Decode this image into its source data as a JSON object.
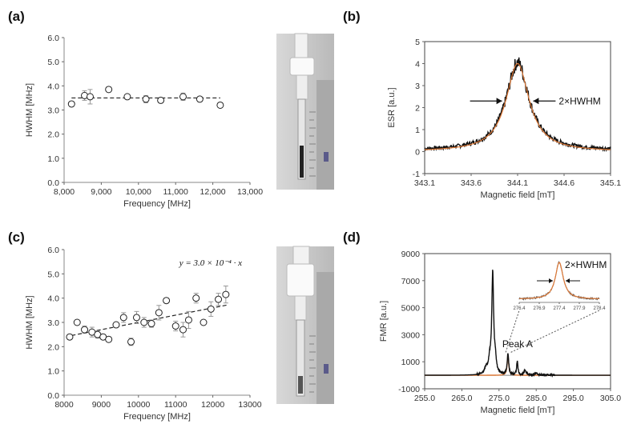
{
  "chart_data": [
    {
      "panel": "(a)",
      "type": "scatter",
      "xlabel": "Frequency [MHz]",
      "ylabel": "HWHM [MHz]",
      "xlim": [
        8000,
        13000
      ],
      "ylim": [
        0.0,
        6.0
      ],
      "xticks": [
        "8,000",
        "9,000",
        "10,000",
        "11,000",
        "12,000",
        "13,000"
      ],
      "yticks": [
        "0.0",
        "1.0",
        "2.0",
        "3.0",
        "4.0",
        "5.0",
        "6.0"
      ],
      "x": [
        8200,
        8550,
        8700,
        9200,
        9700,
        10200,
        10600,
        11200,
        11650,
        12200
      ],
      "y": [
        3.25,
        3.6,
        3.55,
        3.85,
        3.55,
        3.45,
        3.4,
        3.55,
        3.45,
        3.2
      ],
      "err": [
        0.1,
        0.2,
        0.3,
        0.1,
        0.08,
        0.15,
        0.1,
        0.15,
        0.1,
        0.1
      ],
      "fit_y": 3.5
    },
    {
      "panel": "(b)",
      "type": "line",
      "xlabel": "Magnetic field [mT]",
      "ylabel": "ESR [a.u.]",
      "xlim": [
        343.1,
        345.1
      ],
      "ylim": [
        -1,
        5
      ],
      "xticks": [
        "343.1",
        "343.6",
        "344.1",
        "344.6",
        "345.1"
      ],
      "yticks": [
        "-1",
        "0",
        "1",
        "2",
        "3",
        "4",
        "5"
      ],
      "center": 344.1,
      "hwhm": 0.15,
      "amplitude": 4.0,
      "annotation": "2×HWHM"
    },
    {
      "panel": "(c)",
      "type": "scatter",
      "xlabel": "Frequency [MHz]",
      "ylabel": "HWHM [MHz]",
      "xlim": [
        8000,
        13000
      ],
      "ylim": [
        0.0,
        6.0
      ],
      "xticks": [
        "8000",
        "9000",
        "10000",
        "11000",
        "12000",
        "13000"
      ],
      "yticks": [
        "0.0",
        "1.0",
        "2.0",
        "3.0",
        "4.0",
        "5.0",
        "6.0"
      ],
      "x": [
        8150,
        8350,
        8550,
        8750,
        8900,
        9050,
        9200,
        9400,
        9600,
        9800,
        9950,
        10150,
        10350,
        10550,
        10750,
        11000,
        11200,
        11350,
        11550,
        11750,
        11950,
        12150,
        12350
      ],
      "y": [
        2.4,
        3.0,
        2.7,
        2.6,
        2.5,
        2.4,
        2.3,
        2.9,
        3.2,
        2.2,
        3.2,
        3.0,
        2.95,
        3.4,
        3.9,
        2.85,
        2.7,
        3.1,
        4.0,
        3.0,
        3.55,
        3.95,
        4.15
      ],
      "err": [
        0.1,
        0.1,
        0.15,
        0.2,
        0.15,
        0.1,
        0.1,
        0.1,
        0.2,
        0.15,
        0.25,
        0.2,
        0.15,
        0.3,
        0.1,
        0.2,
        0.3,
        0.35,
        0.2,
        0.1,
        0.3,
        0.25,
        0.35
      ],
      "fit_slope": 0.0003,
      "equation": "y = 3.0 × 10⁻⁴ · x"
    },
    {
      "panel": "(d)",
      "type": "line",
      "xlabel": "Magnetic field [mT]",
      "ylabel": "FMR [a.u.]",
      "xlim": [
        255.0,
        305.0
      ],
      "ylim": [
        -1000,
        9000
      ],
      "xticks": [
        "255.0",
        "265.0",
        "275.0",
        "285.0",
        "295.0",
        "305.0"
      ],
      "yticks": [
        "-1000",
        "1000",
        "3000",
        "5000",
        "7000",
        "9000"
      ],
      "peaks": [
        {
          "x": 271.5,
          "h": 400,
          "w": 0.5
        },
        {
          "x": 272.5,
          "h": 900,
          "w": 0.4
        },
        {
          "x": 273.3,
          "h": 7400,
          "w": 0.3
        },
        {
          "x": 274.0,
          "h": 900,
          "w": 0.3
        },
        {
          "x": 277.4,
          "h": 1500,
          "w": 0.25
        },
        {
          "x": 279.9,
          "h": 1000,
          "w": 0.2
        },
        {
          "x": 282.0,
          "h": 400,
          "w": 0.25
        },
        {
          "x": 285.0,
          "h": 180,
          "w": 0.3
        }
      ],
      "peak_label": "Peak A",
      "inset": {
        "xlim": [
          276.4,
          278.4
        ],
        "xticks": [
          "276.4",
          "276.9",
          "277.4",
          "277.9",
          "278.4"
        ],
        "center": 277.4,
        "hwhm": 0.12,
        "annotation": "2×HWHM"
      }
    }
  ],
  "panel_labels": {
    "a": "(a)",
    "b": "(b)",
    "c": "(c)",
    "d": "(d)"
  }
}
